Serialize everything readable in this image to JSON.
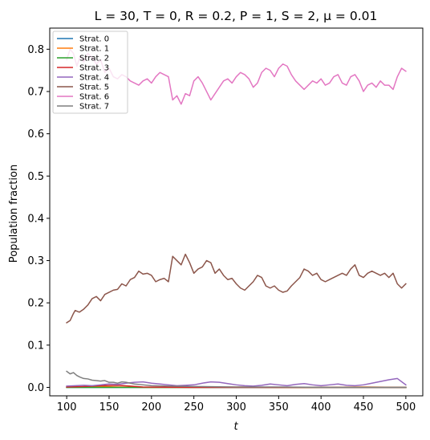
{
  "chart_data": {
    "type": "line",
    "title": "L = 30, T = 0, R = 0.2, P = 1, S = 2, μ = 0.01",
    "xlabel": "t",
    "ylabel": "Population fraction",
    "xlim": [
      80,
      520
    ],
    "ylim": [
      -0.02,
      0.85
    ],
    "xticks": [
      100,
      150,
      200,
      250,
      300,
      350,
      400,
      450,
      500
    ],
    "yticks": [
      0.0,
      0.1,
      0.2,
      0.3,
      0.4,
      0.5,
      0.6,
      0.7,
      0.8
    ],
    "grid": false,
    "legend_position": "top-left",
    "series": [
      {
        "name": "Strat. 0",
        "color": "#1f77b4",
        "x": [
          100,
          200,
          300,
          400,
          500
        ],
        "y": [
          0.0,
          0.0,
          0.0,
          0.0,
          0.0
        ]
      },
      {
        "name": "Strat. 1",
        "color": "#ff7f0e",
        "x": [
          100,
          120,
          140,
          160,
          200,
          250,
          300,
          350,
          400,
          450,
          500
        ],
        "y": [
          0.001,
          0.001,
          0.002,
          0.001,
          0.0,
          0.0,
          0.001,
          0.0,
          0.0,
          0.001,
          0.0
        ]
      },
      {
        "name": "Strat. 2",
        "color": "#2ca02c",
        "x": [
          100,
          200,
          300,
          400,
          500
        ],
        "y": [
          0.0,
          0.0,
          0.0,
          0.0,
          0.0
        ]
      },
      {
        "name": "Strat. 3",
        "color": "#d62728",
        "x": [
          100,
          120,
          140,
          160,
          175,
          190,
          250,
          350,
          500
        ],
        "y": [
          0.001,
          0.002,
          0.004,
          0.005,
          0.003,
          0.001,
          0.0,
          0.0,
          0.0
        ]
      },
      {
        "name": "Strat. 4",
        "color": "#9467bd",
        "x": [
          100,
          110,
          120,
          130,
          140,
          150,
          160,
          170,
          180,
          190,
          200,
          210,
          220,
          230,
          240,
          250,
          260,
          270,
          280,
          290,
          300,
          310,
          320,
          330,
          340,
          350,
          360,
          370,
          380,
          390,
          400,
          410,
          420,
          430,
          440,
          450,
          460,
          470,
          480,
          490,
          500
        ],
        "y": [
          0.003,
          0.004,
          0.005,
          0.004,
          0.006,
          0.008,
          0.007,
          0.01,
          0.012,
          0.013,
          0.01,
          0.008,
          0.006,
          0.004,
          0.005,
          0.006,
          0.01,
          0.013,
          0.012,
          0.009,
          0.006,
          0.004,
          0.003,
          0.005,
          0.008,
          0.006,
          0.004,
          0.007,
          0.009,
          0.006,
          0.004,
          0.006,
          0.008,
          0.005,
          0.004,
          0.006,
          0.01,
          0.014,
          0.018,
          0.021,
          0.006
        ]
      },
      {
        "name": "Strat. 5",
        "color": "#8c564b",
        "x": [
          100,
          104,
          108,
          110,
          115,
          120,
          125,
          130,
          135,
          140,
          145,
          150,
          155,
          160,
          165,
          170,
          175,
          180,
          185,
          190,
          195,
          200,
          205,
          210,
          215,
          220,
          225,
          230,
          235,
          240,
          245,
          250,
          255,
          260,
          265,
          270,
          275,
          280,
          285,
          290,
          295,
          300,
          305,
          310,
          315,
          320,
          325,
          330,
          335,
          340,
          345,
          350,
          355,
          360,
          365,
          370,
          375,
          380,
          385,
          390,
          395,
          400,
          405,
          410,
          415,
          420,
          425,
          430,
          435,
          440,
          445,
          450,
          455,
          460,
          465,
          470,
          475,
          480,
          485,
          490,
          495,
          500
        ],
        "y": [
          0.153,
          0.158,
          0.175,
          0.182,
          0.178,
          0.185,
          0.195,
          0.21,
          0.215,
          0.205,
          0.22,
          0.225,
          0.23,
          0.232,
          0.245,
          0.24,
          0.255,
          0.26,
          0.275,
          0.268,
          0.27,
          0.265,
          0.25,
          0.255,
          0.258,
          0.25,
          0.31,
          0.3,
          0.29,
          0.315,
          0.295,
          0.27,
          0.28,
          0.285,
          0.3,
          0.295,
          0.27,
          0.28,
          0.265,
          0.255,
          0.258,
          0.245,
          0.235,
          0.23,
          0.24,
          0.25,
          0.265,
          0.26,
          0.24,
          0.235,
          0.24,
          0.23,
          0.225,
          0.228,
          0.24,
          0.25,
          0.26,
          0.28,
          0.275,
          0.265,
          0.27,
          0.255,
          0.25,
          0.255,
          0.26,
          0.265,
          0.27,
          0.265,
          0.28,
          0.29,
          0.265,
          0.26,
          0.27,
          0.275,
          0.27,
          0.265,
          0.27,
          0.26,
          0.27,
          0.245,
          0.235,
          0.245
        ]
      },
      {
        "name": "Strat. 6",
        "color": "#e377c2",
        "x": [
          100,
          104,
          108,
          112,
          116,
          120,
          125,
          130,
          135,
          140,
          145,
          150,
          155,
          160,
          165,
          170,
          175,
          180,
          185,
          190,
          195,
          200,
          205,
          210,
          215,
          220,
          225,
          230,
          235,
          240,
          245,
          250,
          255,
          260,
          265,
          270,
          275,
          280,
          285,
          290,
          295,
          300,
          305,
          310,
          315,
          320,
          325,
          330,
          335,
          340,
          345,
          350,
          355,
          360,
          365,
          370,
          375,
          380,
          385,
          390,
          395,
          400,
          405,
          410,
          415,
          420,
          425,
          430,
          435,
          440,
          445,
          450,
          455,
          460,
          465,
          470,
          475,
          480,
          485,
          490,
          495,
          500
        ],
        "y": [
          0.775,
          0.8,
          0.79,
          0.76,
          0.785,
          0.77,
          0.79,
          0.78,
          0.765,
          0.775,
          0.745,
          0.755,
          0.735,
          0.73,
          0.74,
          0.735,
          0.725,
          0.72,
          0.715,
          0.725,
          0.73,
          0.72,
          0.735,
          0.745,
          0.74,
          0.735,
          0.68,
          0.69,
          0.67,
          0.695,
          0.69,
          0.725,
          0.735,
          0.72,
          0.7,
          0.68,
          0.695,
          0.71,
          0.725,
          0.73,
          0.72,
          0.735,
          0.745,
          0.74,
          0.73,
          0.71,
          0.72,
          0.745,
          0.755,
          0.75,
          0.735,
          0.755,
          0.765,
          0.76,
          0.74,
          0.725,
          0.715,
          0.705,
          0.715,
          0.725,
          0.72,
          0.73,
          0.715,
          0.72,
          0.735,
          0.74,
          0.72,
          0.715,
          0.735,
          0.74,
          0.725,
          0.7,
          0.715,
          0.72,
          0.71,
          0.725,
          0.715,
          0.715,
          0.705,
          0.735,
          0.755,
          0.748
        ]
      },
      {
        "name": "Strat. 7",
        "color": "#7f7f7f",
        "x": [
          100,
          104,
          108,
          112,
          116,
          120,
          125,
          130,
          135,
          140,
          145,
          150,
          155,
          160,
          165,
          170,
          175,
          180,
          190,
          200,
          220,
          250,
          300,
          350,
          400,
          450,
          500
        ],
        "y": [
          0.038,
          0.032,
          0.035,
          0.028,
          0.024,
          0.021,
          0.02,
          0.017,
          0.016,
          0.015,
          0.016,
          0.012,
          0.012,
          0.01,
          0.013,
          0.012,
          0.01,
          0.008,
          0.006,
          0.004,
          0.003,
          0.002,
          0.001,
          0.001,
          0.0,
          0.0,
          0.0
        ]
      }
    ]
  }
}
